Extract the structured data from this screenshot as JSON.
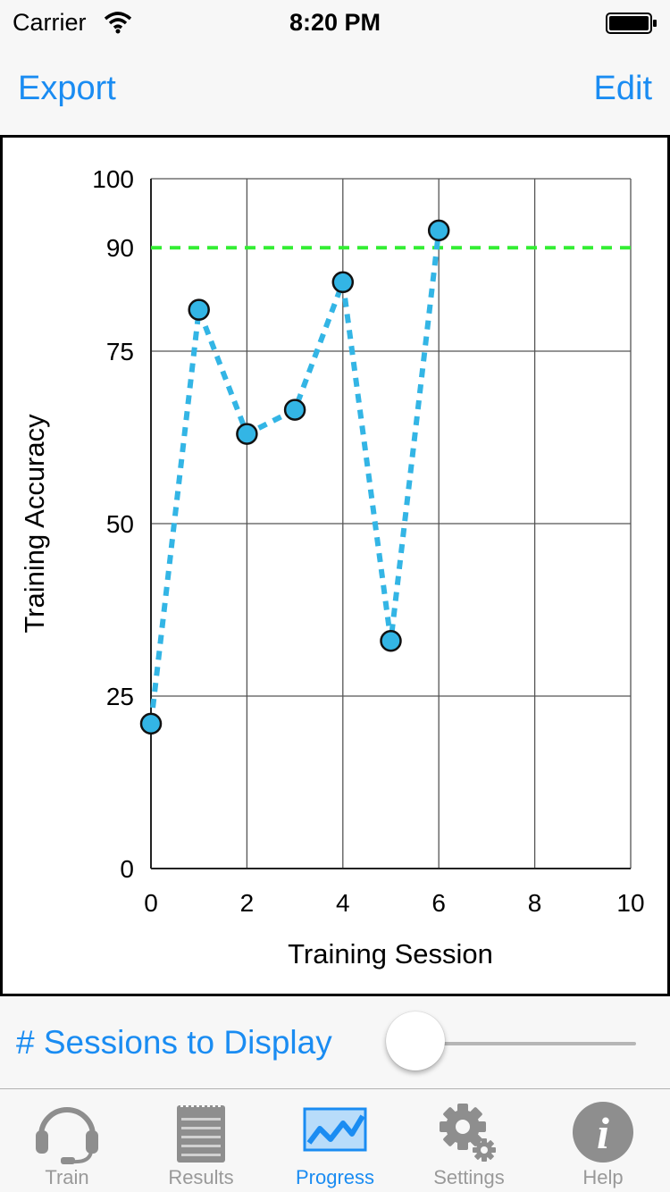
{
  "status_bar": {
    "carrier": "Carrier",
    "time": "8:20 PM"
  },
  "nav": {
    "left_label": "Export",
    "right_label": "Edit"
  },
  "chart_data": {
    "type": "line",
    "xlabel": "Training Session",
    "ylabel": "Training Accuracy",
    "xlim": [
      0,
      10
    ],
    "ylim": [
      0,
      100
    ],
    "x_ticks": [
      0,
      2,
      4,
      6,
      8,
      10
    ],
    "y_ticks": [
      0,
      25,
      50,
      75,
      90,
      100
    ],
    "x_grid": [
      0,
      2,
      4,
      6,
      8,
      10
    ],
    "y_grid": [
      0,
      25,
      50,
      75,
      100
    ],
    "grid": true,
    "reference_line": {
      "y": 90,
      "color": "#33ee33"
    },
    "series": [
      {
        "x": [
          0,
          1,
          2,
          3,
          4,
          5,
          6
        ],
        "y": [
          21,
          81,
          63,
          66.5,
          85,
          33,
          92.5
        ],
        "color": "#33b5e5"
      }
    ]
  },
  "sessions": {
    "label": "# Sessions to Display",
    "value": 0.0
  },
  "tabs": [
    {
      "id": "train",
      "label": "Train",
      "icon": "headset-icon",
      "active": false
    },
    {
      "id": "results",
      "label": "Results",
      "icon": "notepad-icon",
      "active": false
    },
    {
      "id": "progress",
      "label": "Progress",
      "icon": "chart-line-icon",
      "active": true
    },
    {
      "id": "settings",
      "label": "Settings",
      "icon": "gear-icon",
      "active": false
    },
    {
      "id": "help",
      "label": "Help",
      "icon": "info-icon",
      "active": false
    }
  ],
  "colors": {
    "accent": "#1a8cf2",
    "inactive": "#999999",
    "series": "#33b5e5",
    "reference": "#33ee33"
  }
}
